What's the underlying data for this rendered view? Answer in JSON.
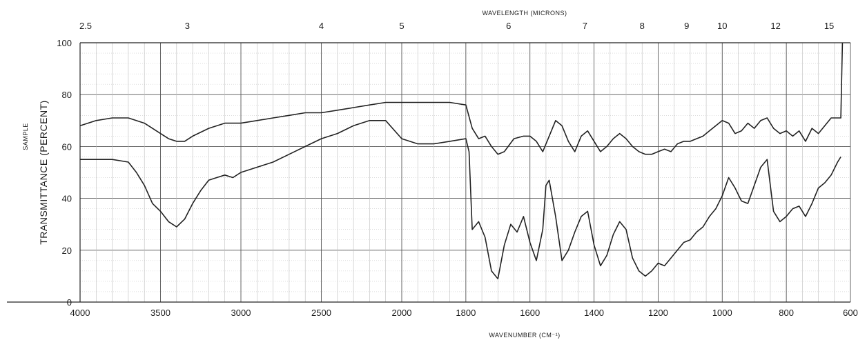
{
  "chart_data": {
    "type": "line",
    "xlabel": "WAVENUMBER (CM⁻¹)",
    "top_axis_label": "WAVELENGTH (MICRONS)",
    "ylabel": "TRANSMITTANCE (PERCENT)",
    "side_label": "SAMPLE",
    "ylim": [
      0,
      100
    ],
    "x_ticks": [
      "4000",
      "3500",
      "3000",
      "2500",
      "2000",
      "1800",
      "1600",
      "1400",
      "1200",
      "1000",
      "800",
      "600"
    ],
    "x_tick_values": [
      4000,
      3500,
      3000,
      2500,
      2000,
      1800,
      1600,
      1400,
      1200,
      1000,
      800,
      600
    ],
    "y_ticks": [
      "0",
      "20",
      "40",
      "60",
      "80",
      "100"
    ],
    "y_tick_values": [
      0,
      20,
      40,
      60,
      80,
      100
    ],
    "top_ticks": [
      "2.5",
      "3",
      "4",
      "5",
      "6",
      "7",
      "8",
      "9",
      "10",
      "12",
      "15"
    ],
    "top_tick_values": [
      2.5,
      3,
      4,
      5,
      6,
      7,
      8,
      9,
      10,
      12,
      15
    ],
    "grid": true,
    "series": [
      {
        "color": "#222222",
        "x": [
          4000,
          3900,
          3800,
          3700,
          3600,
          3500,
          3450,
          3400,
          3350,
          3300,
          3200,
          3100,
          3000,
          2900,
          2800,
          2700,
          2600,
          2500,
          2400,
          2300,
          2200,
          2100,
          2000,
          1950,
          1900,
          1850,
          1800,
          1780,
          1760,
          1740,
          1720,
          1700,
          1680,
          1650,
          1620,
          1600,
          1580,
          1560,
          1540,
          1520,
          1500,
          1480,
          1460,
          1440,
          1420,
          1400,
          1380,
          1360,
          1340,
          1320,
          1300,
          1280,
          1260,
          1240,
          1220,
          1200,
          1180,
          1160,
          1140,
          1120,
          1100,
          1080,
          1060,
          1040,
          1020,
          1000,
          980,
          960,
          940,
          920,
          900,
          880,
          860,
          840,
          820,
          800,
          780,
          760,
          740,
          720,
          700,
          680,
          660,
          640,
          630,
          625
        ],
        "y": [
          68,
          70,
          71,
          71,
          69,
          65,
          63,
          62,
          62,
          64,
          67,
          69,
          69,
          70,
          71,
          72,
          73,
          73,
          74,
          75,
          76,
          77,
          77,
          77,
          77,
          77,
          76,
          67,
          63,
          64,
          60,
          57,
          58,
          63,
          64,
          64,
          62,
          58,
          64,
          70,
          68,
          62,
          58,
          64,
          66,
          62,
          58,
          60,
          63,
          65,
          63,
          60,
          58,
          57,
          57,
          58,
          59,
          58,
          61,
          62,
          62,
          63,
          64,
          66,
          68,
          70,
          69,
          65,
          66,
          69,
          67,
          70,
          71,
          67,
          65,
          66,
          64,
          66,
          62,
          67,
          65,
          68,
          71,
          71,
          71,
          100
        ]
      },
      {
        "color": "#222222",
        "x": [
          4000,
          3900,
          3800,
          3700,
          3650,
          3600,
          3550,
          3500,
          3450,
          3400,
          3350,
          3300,
          3250,
          3200,
          3150,
          3100,
          3050,
          3000,
          2900,
          2800,
          2700,
          2600,
          2500,
          2400,
          2300,
          2200,
          2100,
          2000,
          1950,
          1900,
          1850,
          1800,
          1790,
          1780,
          1760,
          1740,
          1720,
          1700,
          1680,
          1660,
          1640,
          1620,
          1600,
          1580,
          1560,
          1550,
          1540,
          1520,
          1500,
          1480,
          1460,
          1440,
          1420,
          1400,
          1380,
          1360,
          1340,
          1320,
          1300,
          1280,
          1260,
          1240,
          1220,
          1200,
          1180,
          1160,
          1140,
          1120,
          1100,
          1080,
          1060,
          1040,
          1020,
          1000,
          980,
          960,
          940,
          920,
          900,
          880,
          860,
          840,
          820,
          800,
          780,
          760,
          740,
          720,
          700,
          680,
          660,
          640,
          630
        ],
        "y": [
          55,
          55,
          55,
          54,
          50,
          45,
          38,
          35,
          31,
          29,
          32,
          38,
          43,
          47,
          48,
          49,
          48,
          50,
          52,
          54,
          57,
          60,
          63,
          65,
          68,
          70,
          70,
          63,
          61,
          61,
          62,
          63,
          58,
          28,
          31,
          25,
          12,
          9,
          22,
          30,
          27,
          33,
          23,
          16,
          28,
          45,
          47,
          33,
          16,
          20,
          27,
          33,
          35,
          22,
          14,
          18,
          26,
          31,
          28,
          17,
          12,
          10,
          12,
          15,
          14,
          17,
          20,
          23,
          24,
          27,
          29,
          33,
          36,
          41,
          48,
          44,
          39,
          38,
          45,
          52,
          55,
          35,
          31,
          33,
          36,
          37,
          33,
          38,
          44,
          46,
          49,
          54,
          56
        ]
      }
    ]
  }
}
